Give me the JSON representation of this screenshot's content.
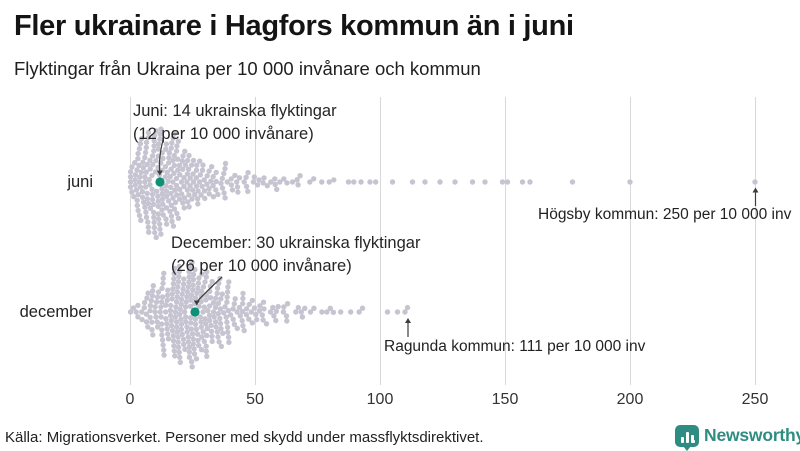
{
  "header": {
    "title": "Fler ukrainare i Hagfors kommun än i juni",
    "subtitle": "Flyktingar från Ukraina per 10 000 invånare och kommun"
  },
  "footer": {
    "source": "Källa: Migrationsverket. Personer med skydd under massflyktsdirektivet.",
    "brand_name": "Newsworthy"
  },
  "colors": {
    "dot": "#c6c4d1",
    "highlight": "#0e9076",
    "grid": "#d8d8d8",
    "arrow": "#3d3d3d",
    "brand": "#2e8c82",
    "text": "#222222"
  },
  "chart_data": {
    "type": "scatter",
    "subtype": "beeswarm",
    "title": "Fler ukrainare i Hagfors kommun än i juni",
    "subtitle": "Flyktingar från Ukraina per 10 000 invånare och kommun",
    "xlabel": "",
    "ylabel": "",
    "x_ticks": [
      0,
      50,
      100,
      150,
      200,
      250
    ],
    "xlim": [
      0,
      262
    ],
    "grid": true,
    "unit": "flyktingar per 10 000 invånare och kommun",
    "rows": [
      {
        "label": "juni",
        "highlight": {
          "municipality": "Hagfors",
          "refugees": 14,
          "per_10000": 12
        },
        "annotation": {
          "line1": "Juni: 14 ukrainska flyktingar",
          "line2": "(12 per 10 000 invånare)"
        },
        "max_annotation": {
          "text": "Högsby kommun: 250 per 10 000 inv",
          "municipality": "Högsby kommun",
          "per_10000": 250
        },
        "distribution_bins": {
          "start": 0,
          "bin_width": 5,
          "counts": [
            28,
            46,
            44,
            38,
            28,
            20,
            14,
            11,
            8,
            6,
            5,
            4,
            4,
            3,
            2,
            2,
            1,
            2,
            1,
            2
          ]
        },
        "outlier_values": [
          105,
          113,
          118,
          124,
          130,
          137,
          142,
          149,
          151,
          157,
          160,
          177,
          200,
          250
        ]
      },
      {
        "label": "december",
        "highlight": {
          "municipality": "Hagfors",
          "refugees": 30,
          "per_10000": 26
        },
        "annotation": {
          "line1": "December: 30 ukrainska flyktingar",
          "line2": "(26 per 10 000 invånare)"
        },
        "max_annotation": {
          "text": "Ragunda kommun: 111 per 10 000 inv",
          "municipality": "Ragunda kommun",
          "per_10000": 111
        },
        "distribution_bins": {
          "start": 0,
          "bin_width": 5,
          "counts": [
            5,
            18,
            30,
            40,
            46,
            42,
            32,
            24,
            16,
            11,
            8,
            7,
            5,
            4,
            3,
            3,
            2,
            1,
            1
          ]
        },
        "outlier_values": [
          93,
          103,
          107,
          110,
          111
        ]
      }
    ]
  }
}
